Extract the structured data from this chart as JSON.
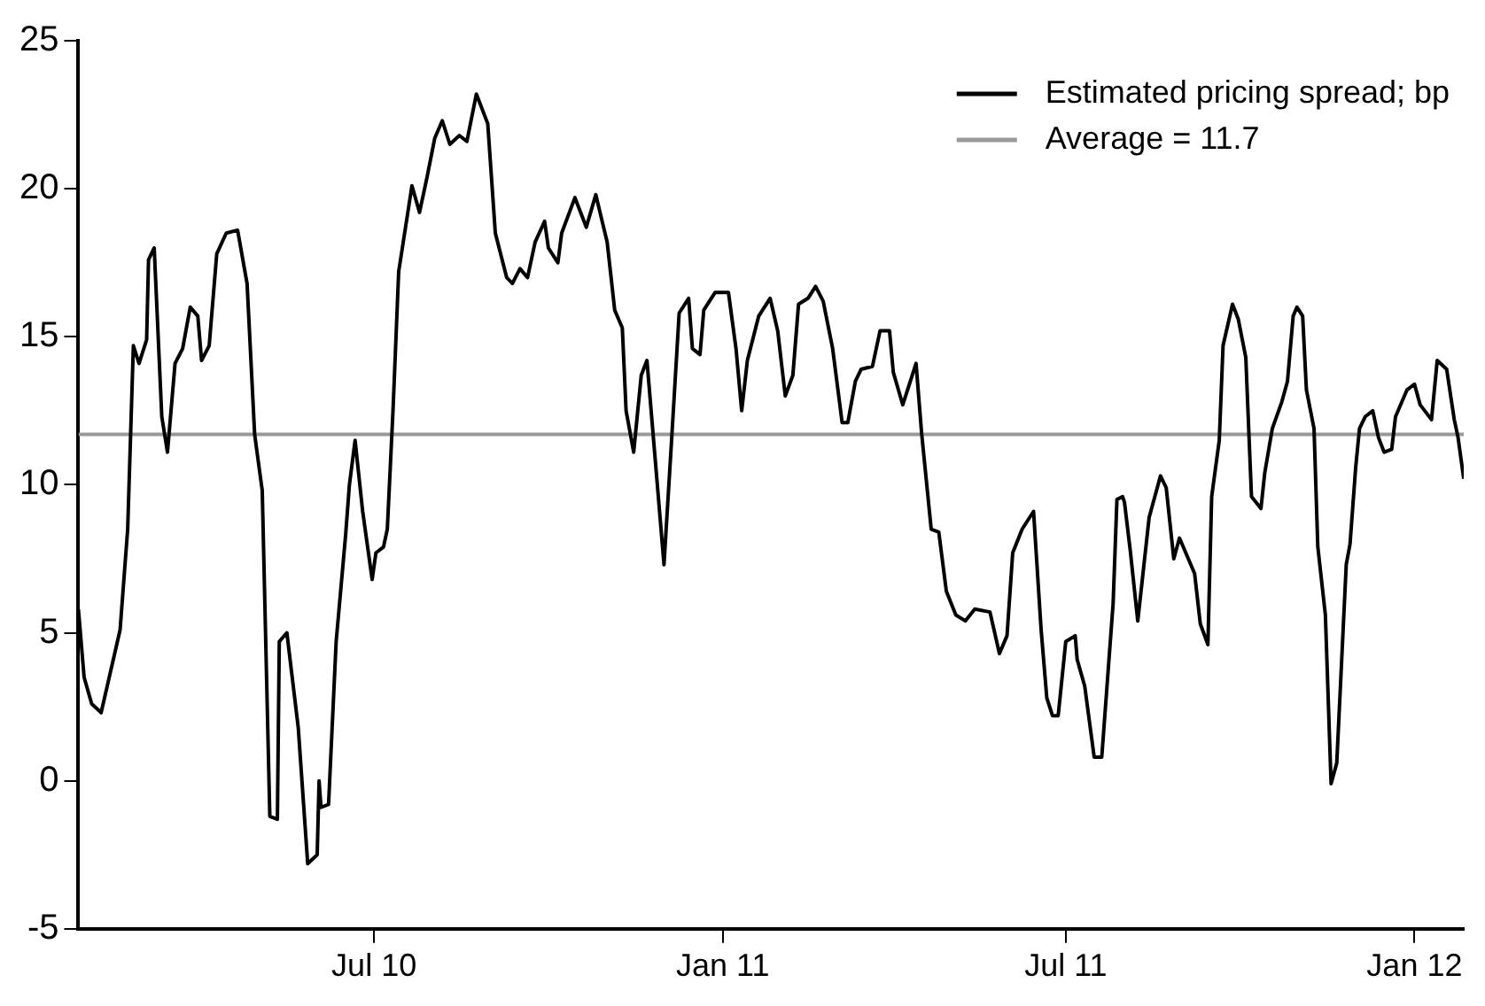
{
  "chart_data": {
    "type": "line",
    "xlim": [
      "2010-01-26",
      "2012-01-27"
    ],
    "xticks": [
      {
        "value": "2010-07-01",
        "label": "Jul 10"
      },
      {
        "value": "2011-01-01",
        "label": "Jan 11"
      },
      {
        "value": "2011-07-01",
        "label": "Jul 11"
      },
      {
        "value": "2012-01-01",
        "label": "Jan 12"
      }
    ],
    "ylim": [
      -5,
      25
    ],
    "yticks": [
      -5,
      0,
      5,
      10,
      15,
      20,
      25
    ],
    "grid": false,
    "legend": "top right",
    "marker": "none",
    "line_style": "solid",
    "x": [
      "2010-01-26",
      "2010-01-29",
      "2010-02-02",
      "2010-02-07",
      "2010-02-12",
      "2010-02-17",
      "2010-02-21",
      "2010-02-24",
      "2010-02-27",
      "2010-03-03",
      "2010-03-04",
      "2010-03-07",
      "2010-03-11",
      "2010-03-14",
      "2010-03-18",
      "2010-03-22",
      "2010-03-26",
      "2010-03-30",
      "2010-04-01",
      "2010-04-05",
      "2010-04-09",
      "2010-04-14",
      "2010-04-20",
      "2010-04-25",
      "2010-04-29",
      "2010-05-03",
      "2010-05-07",
      "2010-05-11",
      "2010-05-12",
      "2010-05-16",
      "2010-05-22",
      "2010-05-27",
      "2010-06-01",
      "2010-06-02",
      "2010-06-03",
      "2010-06-07",
      "2010-06-11",
      "2010-06-16",
      "2010-06-18",
      "2010-06-21",
      "2010-06-25",
      "2010-06-30",
      "2010-07-02",
      "2010-07-06",
      "2010-07-08",
      "2010-07-11",
      "2010-07-14",
      "2010-07-21",
      "2010-07-25",
      "2010-07-29",
      "2010-08-02",
      "2010-08-06",
      "2010-08-10",
      "2010-08-15",
      "2010-08-19",
      "2010-08-24",
      "2010-08-30",
      "2010-09-03",
      "2010-09-09",
      "2010-09-12",
      "2010-09-16",
      "2010-09-20",
      "2010-09-24",
      "2010-09-29",
      "2010-10-01",
      "2010-10-06",
      "2010-10-08",
      "2010-10-15",
      "2010-10-21",
      "2010-10-26",
      "2010-11-01",
      "2010-11-05",
      "2010-11-09",
      "2010-11-11",
      "2010-11-15",
      "2010-11-19",
      "2010-11-22",
      "2010-12-01",
      "2010-12-05",
      "2010-12-09",
      "2010-12-14",
      "2010-12-16",
      "2010-12-20",
      "2010-12-22",
      "2010-12-28",
      "2011-01-04",
      "2011-01-08",
      "2011-01-11",
      "2011-01-14",
      "2011-01-20",
      "2011-01-26",
      "2011-01-30",
      "2011-02-03",
      "2011-02-07",
      "2011-02-10",
      "2011-02-15",
      "2011-02-19",
      "2011-02-23",
      "2011-02-28",
      "2011-03-05",
      "2011-03-08",
      "2011-03-12",
      "2011-03-15",
      "2011-03-21",
      "2011-03-25",
      "2011-03-30",
      "2011-04-01",
      "2011-04-06",
      "2011-04-13",
      "2011-04-16",
      "2011-04-21",
      "2011-04-25",
      "2011-04-29",
      "2011-05-04",
      "2011-05-09",
      "2011-05-14",
      "2011-05-22",
      "2011-05-27",
      "2011-05-31",
      "2011-06-03",
      "2011-06-08",
      "2011-06-14",
      "2011-06-18",
      "2011-06-21",
      "2011-06-24",
      "2011-06-27",
      "2011-07-01",
      "2011-07-06",
      "2011-07-07",
      "2011-07-11",
      "2011-07-16",
      "2011-07-20",
      "2011-07-26",
      "2011-07-28",
      "2011-07-31",
      "2011-08-01",
      "2011-08-04",
      "2011-08-08",
      "2011-08-14",
      "2011-08-17",
      "2011-08-20",
      "2011-08-23",
      "2011-08-27",
      "2011-08-30",
      "2011-09-07",
      "2011-09-10",
      "2011-09-14",
      "2011-09-16",
      "2011-09-20",
      "2011-09-22",
      "2011-09-27",
      "2011-09-30",
      "2011-10-04",
      "2011-10-07",
      "2011-10-12",
      "2011-10-14",
      "2011-10-18",
      "2011-10-23",
      "2011-10-26",
      "2011-10-29",
      "2011-10-31",
      "2011-11-03",
      "2011-11-05",
      "2011-11-09",
      "2011-11-11",
      "2011-11-15",
      "2011-11-18",
      "2011-11-21",
      "2011-11-26",
      "2011-11-28",
      "2011-12-01",
      "2011-12-03",
      "2011-12-06",
      "2011-12-10",
      "2011-12-13",
      "2011-12-16",
      "2011-12-20",
      "2011-12-22",
      "2011-12-28",
      "2012-01-01",
      "2012-01-04",
      "2012-01-10",
      "2012-01-13",
      "2012-01-18",
      "2012-01-22",
      "2012-01-24",
      "2012-01-27"
    ],
    "series": [
      {
        "name": "Estimated pricing spread; bp",
        "color": "#000000",
        "values": [
          5.8,
          3.5,
          2.6,
          2.3,
          3.7,
          5.1,
          8.5,
          14.7,
          14.1,
          14.9,
          17.6,
          18.0,
          12.3,
          11.1,
          14.1,
          14.6,
          16.0,
          15.7,
          14.2,
          14.7,
          17.8,
          18.5,
          18.6,
          16.8,
          11.7,
          9.8,
          -1.2,
          -1.3,
          4.7,
          5.0,
          1.8,
          -2.8,
          -2.5,
          0,
          -0.9,
          -0.8,
          4.7,
          8.3,
          10.0,
          11.5,
          9.1,
          6.8,
          7.7,
          7.9,
          8.5,
          12.5,
          17.2,
          20.1,
          19.2,
          20.4,
          21.7,
          22.3,
          21.5,
          21.8,
          21.6,
          23.2,
          22.2,
          18.5,
          17.0,
          16.8,
          17.3,
          17.0,
          18.2,
          18.9,
          18.0,
          17.5,
          18.5,
          19.7,
          18.7,
          19.8,
          18.2,
          15.9,
          15.3,
          12.5,
          11.1,
          13.7,
          14.2,
          7.3,
          11.5,
          15.8,
          16.3,
          14.6,
          14.4,
          15.9,
          16.5,
          16.5,
          14.6,
          12.5,
          14.2,
          15.7,
          16.3,
          15.2,
          13.0,
          13.7,
          16.1,
          16.3,
          16.7,
          16.2,
          14.6,
          12.1,
          12.1,
          13.5,
          13.9,
          14.0,
          15.2,
          15.2,
          13.8,
          12.7,
          14.1,
          11.7,
          8.5,
          8.4,
          6.4,
          5.6,
          5.4,
          5.8,
          5.7,
          4.3,
          4.9,
          7.7,
          8.5,
          9.1,
          5.1,
          2.8,
          2.2,
          2.2,
          4.7,
          4.9,
          4.1,
          3.2,
          0.8,
          0.8,
          6.0,
          9.5,
          9.6,
          9.4,
          7.8,
          5.4,
          8.9,
          9.6,
          10.3,
          9.9,
          7.5,
          8.2,
          7.0,
          5.3,
          4.6,
          9.6,
          11.5,
          14.7,
          16.1,
          15.6,
          14.3,
          9.6,
          9.2,
          10.4,
          11.9,
          12.8,
          13.5,
          15.7,
          16.0,
          15.7,
          13.2,
          11.9,
          7.9,
          5.6,
          -0.1,
          0.6,
          7.3,
          8.0,
          10.6,
          11.9,
          12.3,
          12.5,
          11.6,
          11.1,
          11.2,
          12.3,
          13.2,
          13.4,
          12.7,
          12.2,
          14.2,
          13.9,
          12.2,
          11.6,
          10.2
        ]
      }
    ],
    "ref_lines": [
      {
        "axis": "y",
        "value": 11.7,
        "label": "Average = 11.7",
        "color": "#999999"
      }
    ]
  }
}
